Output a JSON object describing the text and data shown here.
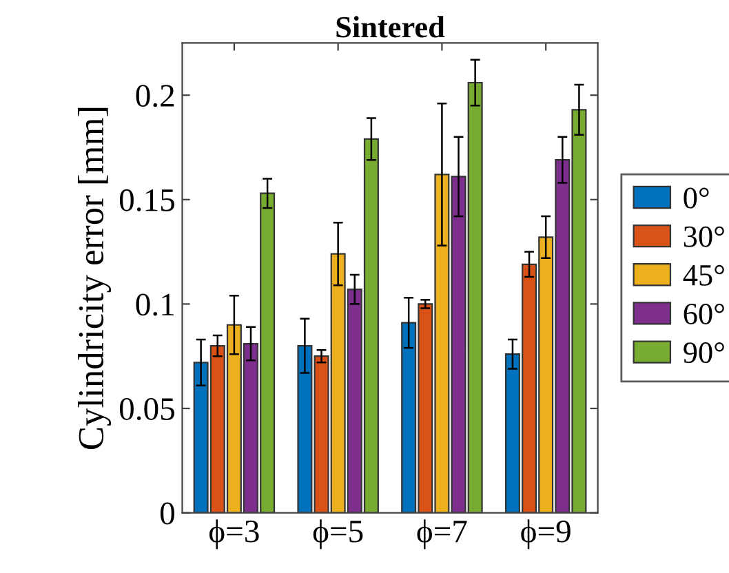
{
  "chart_data": {
    "type": "bar",
    "title": "Sintered",
    "ylabel": "Cylindricity error [mm]",
    "categories": [
      "ϕ=3",
      "ϕ=5",
      "ϕ=7",
      "ϕ=9"
    ],
    "series": [
      {
        "name": "0°",
        "color": "#0072bd",
        "values": [
          0.072,
          0.08,
          0.091,
          0.076
        ],
        "errors": [
          0.011,
          0.013,
          0.012,
          0.007
        ]
      },
      {
        "name": "30°",
        "color": "#d95319",
        "values": [
          0.08,
          0.075,
          0.1,
          0.119
        ],
        "errors": [
          0.005,
          0.003,
          0.002,
          0.006
        ]
      },
      {
        "name": "45°",
        "color": "#edb120",
        "values": [
          0.09,
          0.124,
          0.162,
          0.132
        ],
        "errors": [
          0.014,
          0.015,
          0.034,
          0.01
        ]
      },
      {
        "name": "60°",
        "color": "#7e2f8e",
        "values": [
          0.081,
          0.107,
          0.161,
          0.169
        ],
        "errors": [
          0.008,
          0.007,
          0.019,
          0.011
        ]
      },
      {
        "name": "90°",
        "color": "#77ac30",
        "values": [
          0.153,
          0.179,
          0.206,
          0.193
        ],
        "errors": [
          0.007,
          0.01,
          0.011,
          0.012
        ]
      }
    ],
    "ylim": [
      0,
      0.225
    ],
    "yticks": [
      0,
      0.05,
      0.1,
      0.15,
      0.2
    ],
    "grid": false,
    "legend": "right"
  }
}
